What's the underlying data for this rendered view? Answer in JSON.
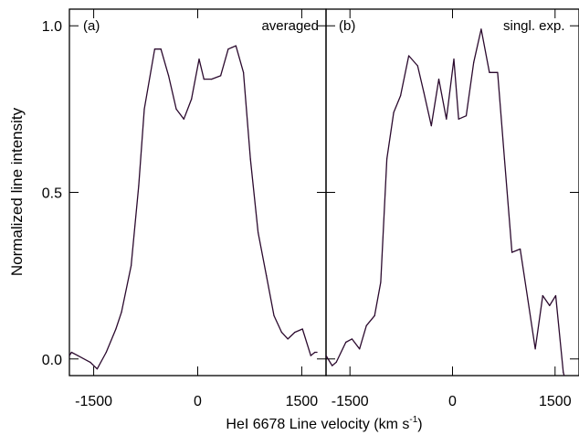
{
  "chart_data": {
    "type": "line",
    "ylabel": "Normalized line intensity",
    "xlabel": "HeI 6678 Line velocity (km s",
    "xlabel_sup": "-1",
    "xlabel_close": ")",
    "xlim": [
      -1850,
      1850
    ],
    "ylim": [
      -0.05,
      1.05
    ],
    "yticks": [
      {
        "v": 0.0,
        "label": "0.0"
      },
      {
        "v": 0.5,
        "label": "0.5"
      },
      {
        "v": 1.0,
        "label": "1.0"
      }
    ],
    "xticks": [
      {
        "v": -1500,
        "label": "-1500"
      },
      {
        "v": 0,
        "label": "0"
      },
      {
        "v": 1500,
        "label": "1500"
      }
    ],
    "panels": [
      {
        "tag": "(a)",
        "label": "averaged",
        "x": [
          -1850,
          -1820,
          -1730,
          -1550,
          -1450,
          -1320,
          -1180,
          -1100,
          -960,
          -850,
          -770,
          -620,
          -530,
          -420,
          -310,
          -200,
          -90,
          20,
          90,
          200,
          330,
          440,
          550,
          660,
          760,
          870,
          990,
          1100,
          1210,
          1300,
          1400,
          1510,
          1630,
          1690,
          1720
        ],
        "y": [
          0.01,
          0.02,
          0.01,
          -0.01,
          -0.03,
          0.02,
          0.09,
          0.14,
          0.28,
          0.52,
          0.75,
          0.93,
          0.93,
          0.85,
          0.75,
          0.72,
          0.78,
          0.9,
          0.84,
          0.84,
          0.85,
          0.93,
          0.94,
          0.86,
          0.6,
          0.38,
          0.25,
          0.13,
          0.08,
          0.06,
          0.08,
          0.09,
          0.01,
          0.02,
          0.02
        ],
        "series_name": "",
        "color": "#2b0a2e"
      },
      {
        "tag": "(b)",
        "label": "singl. exp.",
        "x": [
          -1850,
          -1760,
          -1700,
          -1560,
          -1470,
          -1360,
          -1260,
          -1140,
          -1050,
          -960,
          -860,
          -760,
          -640,
          -510,
          -420,
          -310,
          -200,
          -90,
          20,
          90,
          200,
          310,
          420,
          540,
          660,
          760,
          870,
          990,
          1100,
          1210,
          1320,
          1420,
          1510,
          1620,
          1700,
          1720
        ],
        "y": [
          0.01,
          -0.02,
          -0.01,
          0.05,
          0.06,
          0.03,
          0.1,
          0.13,
          0.23,
          0.6,
          0.74,
          0.79,
          0.91,
          0.88,
          0.8,
          0.7,
          0.84,
          0.72,
          0.9,
          0.72,
          0.73,
          0.89,
          0.99,
          0.86,
          0.86,
          0.6,
          0.32,
          0.33,
          0.18,
          0.03,
          0.19,
          0.16,
          0.19,
          -0.04,
          -0.1,
          -0.1
        ],
        "series_name": "",
        "color": "#2b0a2e"
      }
    ],
    "grid": false,
    "legend": "none"
  }
}
